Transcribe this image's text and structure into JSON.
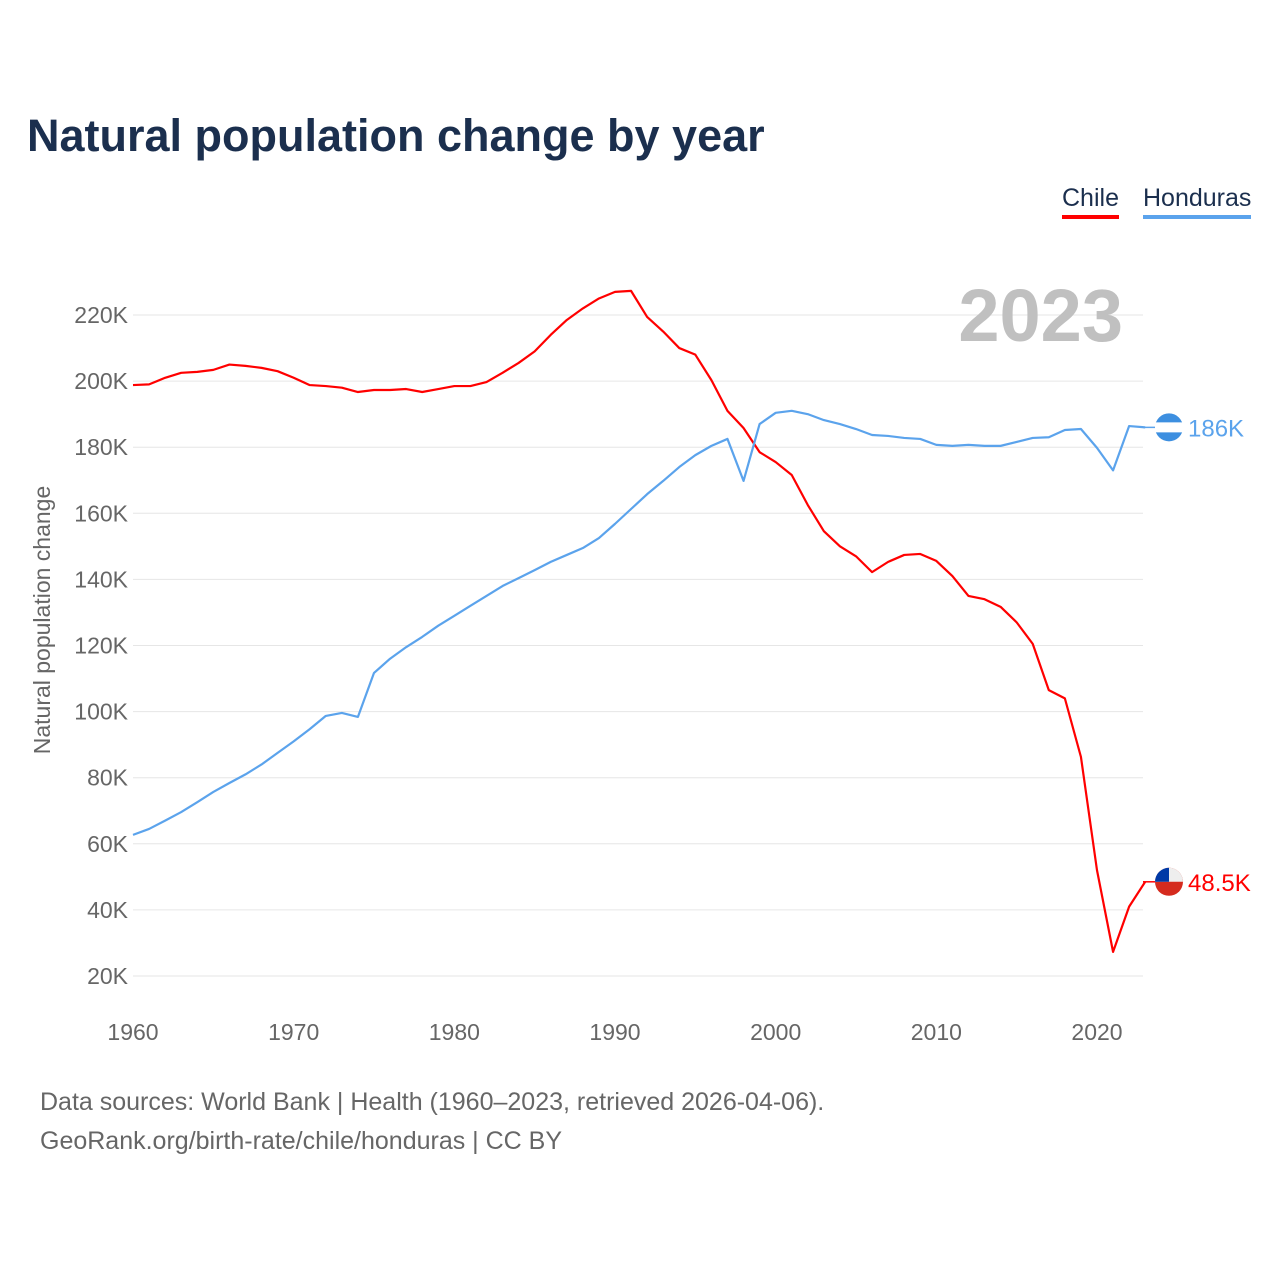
{
  "chart_data": {
    "type": "line",
    "title": "Natural population change by year",
    "ylabel": "Natural population change",
    "xlabel": "",
    "xlim": [
      1960,
      2023
    ],
    "ylim": [
      10000,
      230000
    ],
    "x_ticks": [
      1960,
      1970,
      1980,
      1990,
      2000,
      2010,
      2020
    ],
    "y_ticks": [
      20000,
      40000,
      60000,
      80000,
      100000,
      120000,
      140000,
      160000,
      180000,
      200000,
      220000
    ],
    "y_tick_labels": [
      "20K",
      "40K",
      "60K",
      "80K",
      "100K",
      "120K",
      "140K",
      "160K",
      "180K",
      "200K",
      "220K"
    ],
    "year_label": "2023",
    "grid": true,
    "legend_position": "top-right",
    "x": [
      1960,
      1961,
      1962,
      1963,
      1964,
      1965,
      1966,
      1967,
      1968,
      1969,
      1970,
      1971,
      1972,
      1973,
      1974,
      1975,
      1976,
      1977,
      1978,
      1979,
      1980,
      1981,
      1982,
      1983,
      1984,
      1985,
      1986,
      1987,
      1988,
      1989,
      1990,
      1991,
      1992,
      1993,
      1994,
      1995,
      1996,
      1997,
      1998,
      1999,
      2000,
      2001,
      2002,
      2003,
      2004,
      2005,
      2006,
      2007,
      2008,
      2009,
      2010,
      2011,
      2012,
      2013,
      2014,
      2015,
      2016,
      2017,
      2018,
      2019,
      2020,
      2021,
      2022,
      2023
    ],
    "series": [
      {
        "name": "Chile",
        "color": "#ff0000",
        "end_label": "48.5K",
        "values": [
          198800,
          199000,
          201000,
          202500,
          202800,
          203400,
          205000,
          204600,
          204000,
          203000,
          201000,
          198800,
          198500,
          198000,
          196700,
          197300,
          197300,
          197600,
          196700,
          197600,
          198500,
          198500,
          199700,
          202500,
          205500,
          209000,
          214000,
          218500,
          222000,
          225000,
          227000,
          227300,
          219400,
          215000,
          210000,
          208000,
          200300,
          191000,
          185800,
          178500,
          175500,
          171600,
          162500,
          154600,
          150000,
          147000,
          142200,
          145300,
          147400,
          147700,
          145600,
          141000,
          135000,
          134000,
          131700,
          127000,
          120500,
          106500,
          104000,
          86300,
          52000,
          27300,
          41000,
          48500
        ]
      },
      {
        "name": "Honduras",
        "color": "#5ba3ec",
        "end_label": "186K",
        "values": [
          62700,
          64500,
          67000,
          69600,
          72600,
          75700,
          78400,
          81000,
          84000,
          87500,
          91000,
          94700,
          98700,
          99600,
          98400,
          111700,
          116000,
          119500,
          122600,
          126000,
          129000,
          132000,
          135000,
          138000,
          140400,
          142800,
          145300,
          147400,
          149500,
          152500,
          156800,
          161300,
          165800,
          169800,
          174000,
          177600,
          180400,
          182500,
          169800,
          187000,
          190400,
          191000,
          190000,
          188200,
          187000,
          185500,
          183700,
          183400,
          182800,
          182500,
          180700,
          180400,
          180700,
          180400,
          180400,
          181600,
          182800,
          183000,
          185200,
          185500,
          179800,
          173000,
          186400,
          186000
        ]
      }
    ]
  },
  "footer": {
    "line1": "Data sources: World Bank | Health (1960–2023, retrieved 2026-04-06).",
    "line2": "GeoRank.org/birth-rate/chile/honduras | CC BY"
  }
}
